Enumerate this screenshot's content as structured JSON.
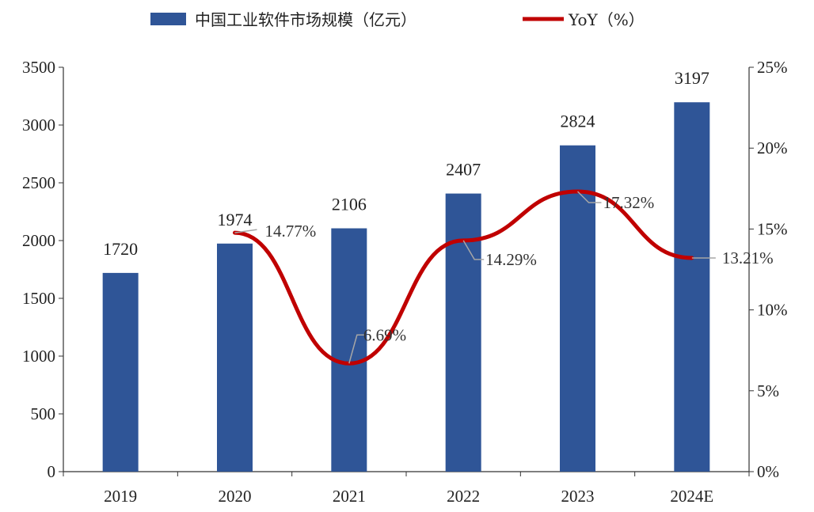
{
  "colors": {
    "bar": "#2F5597",
    "line": "#C00000",
    "axis": "#333333",
    "leader": "#A6A6A6",
    "text": "#222222"
  },
  "chart_data": {
    "type": "bar",
    "categories": [
      "2019",
      "2020",
      "2021",
      "2022",
      "2023",
      "2024E"
    ],
    "series": [
      {
        "name": "中国工业软件市场规模（亿元）",
        "type": "bar",
        "axis": "left",
        "values": [
          1720,
          1974,
          2106,
          2407,
          2824,
          3197
        ],
        "data_labels": [
          "1720",
          "1974",
          "2106",
          "2407",
          "2824",
          "3197"
        ]
      },
      {
        "name": "YoY（%）",
        "type": "line",
        "axis": "right",
        "smooth": true,
        "values": [
          null,
          14.77,
          6.69,
          14.29,
          17.32,
          13.21
        ],
        "data_labels": [
          null,
          "14.77%",
          "6.69%",
          "14.29%",
          "17.32%",
          "13.21%"
        ]
      }
    ],
    "y_left": {
      "ylim": [
        0,
        3500
      ],
      "ticks": [
        "0",
        "500",
        "1000",
        "1500",
        "2000",
        "2500",
        "3000",
        "3500"
      ]
    },
    "y_right": {
      "ylim": [
        0,
        25
      ],
      "ticks": [
        "0%",
        "5%",
        "10%",
        "15%",
        "20%",
        "25%"
      ]
    },
    "grid": false,
    "legend": "top-center"
  }
}
